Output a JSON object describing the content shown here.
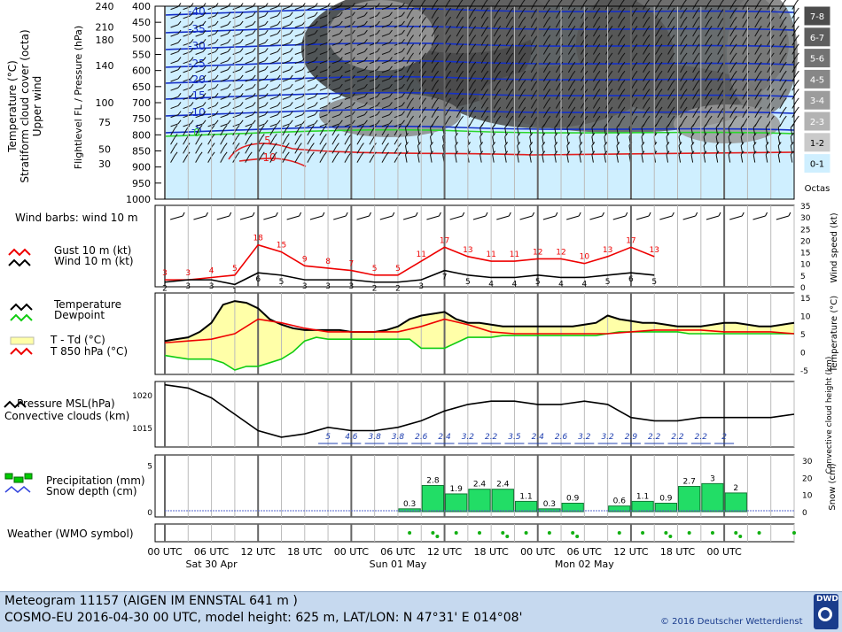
{
  "panels": {
    "upper": {
      "labels": [
        "Temperature (°C)",
        "Stratiform cloud cover (octa)",
        "Upper wind"
      ],
      "axis_label": "Flightlevel FL / Pressure (hPa)",
      "pressure_ticks": [
        "400",
        "450",
        "500",
        "550",
        "600",
        "650",
        "700",
        "750",
        "800",
        "850",
        "900",
        "950",
        "1000"
      ],
      "fl_ticks": [
        "240",
        "210",
        "180",
        "140",
        "100",
        "75",
        "50",
        "30"
      ],
      "octa_legend": [
        "7-8",
        "6-7",
        "5-6",
        "4-5",
        "3-4",
        "2-3",
        "1-2",
        "0-1"
      ],
      "octa_title": "Octas",
      "octa_colors": [
        "#4c4c4c",
        "#5e5e5e",
        "#727272",
        "#878787",
        "#9c9c9c",
        "#b3b3b3",
        "#cacaca",
        "#cfefff"
      ],
      "isotherms": [
        "-40",
        "-35",
        "-30",
        "-25",
        "-20",
        "-15",
        "-10",
        "-5",
        "0",
        "5",
        "10"
      ]
    },
    "wind": {
      "title": "Wind barbs: wind 10 m",
      "legend": [
        "Gust 10 m (kt)",
        "Wind 10 m (kt)"
      ],
      "axis_label": "Wind speed (kt)",
      "ticks": [
        "35",
        "30",
        "25",
        "20",
        "15",
        "10",
        "5",
        "0"
      ]
    },
    "temp": {
      "legend": [
        "Temperature",
        "Dewpoint",
        "T - Td (°C)",
        "T 850 hPa (°C)"
      ],
      "axis_label": "Temperature (°C)",
      "ticks": [
        "15",
        "10",
        "5",
        "0",
        "-5"
      ]
    },
    "pressure": {
      "legend": [
        "Pressure MSL(hPa)",
        "Convective clouds (km)"
      ],
      "ticks": [
        "1020",
        "1015"
      ],
      "axis_label": "Convective cloud height (km)"
    },
    "precip": {
      "legend": [
        "Precipitation (mm)",
        "Snow depth (cm)"
      ],
      "left_ticks": [
        "5",
        "0"
      ],
      "right_ticks": [
        "30",
        "20",
        "10",
        "0"
      ],
      "axis_label": "Snow (cm)"
    },
    "weather": {
      "label": "Weather (WMO symbol)"
    }
  },
  "time_axis": {
    "ticks": [
      "00 UTC",
      "06 UTC",
      "12 UTC",
      "18 UTC",
      "00 UTC",
      "06 UTC",
      "12 UTC",
      "18 UTC",
      "00 UTC",
      "06 UTC",
      "12 UTC",
      "18 UTC",
      "00 UTC"
    ],
    "days": [
      "Sat 30 Apr",
      "Sun 01 May",
      "Mon 02 May"
    ]
  },
  "chart_data": [
    {
      "type": "line",
      "title": "Wind barbs: wind 10 m",
      "ylabel": "Wind speed (kt)",
      "ylim": [
        0,
        35
      ],
      "series": [
        {
          "name": "Gust 10 m (kt)",
          "x": [
            0,
            6,
            12,
            18,
            24,
            30,
            36,
            42,
            48,
            54,
            60,
            66,
            72,
            78,
            84,
            90,
            96,
            102,
            108,
            114,
            120,
            126
          ],
          "values": [
            3,
            3,
            4,
            5,
            18,
            15,
            9,
            8,
            7,
            5,
            5,
            11,
            17,
            13,
            11,
            11,
            12,
            12,
            10,
            13,
            17,
            13
          ],
          "labels": [
            3,
            3,
            4,
            5,
            18,
            15,
            9,
            8,
            7,
            5,
            5,
            11,
            17,
            13,
            11,
            11,
            12,
            12,
            10,
            13,
            17,
            13
          ]
        },
        {
          "name": "Wind 10 m (kt)",
          "x": [
            0,
            6,
            12,
            18,
            24,
            30,
            36,
            42,
            48,
            54,
            60,
            66,
            72,
            78,
            84,
            90,
            96,
            102,
            108,
            114,
            120,
            126
          ],
          "values": [
            2,
            3,
            3,
            1,
            6,
            5,
            3,
            3,
            3,
            2,
            2,
            3,
            7,
            5,
            4,
            4,
            5,
            4,
            4,
            5,
            6,
            5
          ]
        }
      ]
    },
    {
      "type": "line",
      "ylabel": "Temperature (°C)",
      "ylim": [
        -5,
        15
      ],
      "series": [
        {
          "name": "Temperature",
          "x": [
            0,
            3,
            6,
            9,
            12,
            15,
            18,
            21,
            24,
            27,
            30,
            33,
            36,
            39,
            42,
            45,
            48,
            51,
            54,
            57,
            60,
            63,
            66,
            69,
            72,
            75,
            78,
            81,
            84,
            87,
            90,
            93,
            96,
            99,
            102,
            105,
            108,
            111,
            114,
            117,
            120,
            123,
            126,
            129,
            132,
            135,
            138,
            141,
            144,
            147,
            150,
            153,
            156,
            159,
            162
          ],
          "values": [
            3,
            3.5,
            4,
            5.5,
            8,
            13,
            14,
            13.5,
            12,
            9,
            7.5,
            6.5,
            6,
            6,
            6,
            6,
            5.5,
            5.5,
            5.5,
            6,
            7,
            9,
            10,
            10.5,
            11,
            9,
            8,
            8,
            7.5,
            7,
            7,
            7,
            7,
            7,
            7,
            7,
            7.5,
            8,
            10,
            9,
            8.5,
            8,
            8,
            7.5,
            7,
            7,
            7,
            7.5,
            8,
            8,
            7.5,
            7,
            7,
            7.5,
            8
          ]
        },
        {
          "name": "Dewpoint",
          "x": [
            0,
            3,
            6,
            9,
            12,
            15,
            18,
            21,
            24,
            27,
            30,
            33,
            36,
            39,
            42,
            45,
            48,
            51,
            54,
            57,
            60,
            63,
            66,
            69,
            72,
            75,
            78,
            81,
            84,
            87,
            90,
            93,
            96,
            99,
            102,
            105,
            108,
            111,
            114,
            117,
            120,
            123,
            126,
            129,
            132,
            135,
            138,
            141,
            144,
            147,
            150,
            153,
            156,
            159,
            162
          ],
          "values": [
            -1,
            -1.5,
            -2,
            -2,
            -2,
            -3,
            -5,
            -4,
            -4,
            -3,
            -2,
            0,
            3,
            4,
            3.5,
            3.5,
            3.5,
            3.5,
            3.5,
            3.5,
            3.5,
            3.5,
            1,
            1,
            1,
            2.5,
            4,
            4,
            4,
            4.5,
            4.5,
            4.5,
            4.5,
            4.5,
            4.5,
            4.5,
            4.5,
            4.5,
            5,
            5.5,
            5.5,
            5.5,
            5.5,
            5.5,
            5.5,
            5,
            5,
            5,
            5,
            5,
            5,
            5,
            5,
            5,
            5
          ]
        },
        {
          "name": "T 850 hPa (°C)",
          "x": [
            0,
            6,
            12,
            18,
            24,
            30,
            36,
            42,
            48,
            54,
            60,
            66,
            72,
            78,
            84,
            90,
            96,
            102,
            108,
            114,
            120,
            126,
            132,
            138,
            144,
            150,
            156,
            162
          ],
          "values": [
            2.5,
            3,
            3.5,
            5,
            9,
            8,
            6.5,
            5.5,
            5.5,
            5.5,
            5.5,
            7,
            9,
            7.5,
            5.5,
            5,
            5,
            5,
            5,
            5,
            5.5,
            6,
            6,
            6,
            5.5,
            5.5,
            5.5,
            5
          ]
        }
      ]
    },
    {
      "type": "line",
      "ylabel": "Pressure MSL(hPa)",
      "ylim": [
        1012,
        1022
      ],
      "series": [
        {
          "name": "Pressure MSL(hPa)",
          "x": [
            0,
            6,
            12,
            18,
            24,
            30,
            36,
            42,
            48,
            54,
            60,
            66,
            72,
            78,
            84,
            90,
            96,
            102,
            108,
            114,
            120,
            126,
            132,
            138,
            144,
            150,
            156,
            162
          ],
          "values": [
            1021.5,
            1021,
            1019.5,
            1017,
            1014.5,
            1013.5,
            1014,
            1015,
            1014.5,
            1014.5,
            1015,
            1016,
            1017.5,
            1018.5,
            1019,
            1019,
            1018.5,
            1018.5,
            1019,
            1018.5,
            1016.5,
            1016,
            1016,
            1016.5,
            1016.5,
            1016.5,
            1016.5,
            1017
          ]
        }
      ]
    },
    {
      "type": "bar",
      "ylabel": "Precipitation (mm)",
      "ylim": [
        0,
        6
      ],
      "series": [
        {
          "name": "Precipitation (mm)",
          "x": [
            63,
            69,
            75,
            81,
            87,
            93,
            99,
            105,
            111,
            117,
            123,
            129,
            135,
            141,
            147,
            153,
            159
          ],
          "values": [
            0.3,
            2.8,
            1.9,
            2.4,
            2.4,
            1.1,
            0.3,
            0.9,
            0,
            0.6,
            1.1,
            0.9,
            2.7,
            3,
            2,
            0,
            0
          ]
        }
      ]
    },
    {
      "type": "table",
      "title": "Convective clouds (km)",
      "x": [
        42,
        48,
        54,
        60,
        66,
        72,
        78,
        84,
        90,
        96,
        102,
        108,
        114,
        120,
        126,
        132,
        138,
        144
      ],
      "values": [
        5,
        4.6,
        3.8,
        3.8,
        2.6,
        2.4,
        3.2,
        2.2,
        3.5,
        2.4,
        2.6,
        3.2,
        3.2,
        2.9,
        2.2,
        2.2,
        2.2,
        2
      ]
    }
  ]
}
